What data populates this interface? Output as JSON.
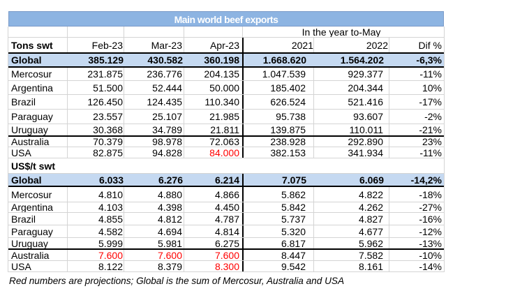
{
  "chart_data": {
    "type": "table",
    "title": "Main world beef exports",
    "span_header": "In the year to-May",
    "header": [
      "Tons swt",
      "Feb-23",
      "Mar-23",
      "Apr-23",
      "2021",
      "2022",
      "Dif %"
    ],
    "usd_section_label": "US$/t swt",
    "tons_rows": [
      [
        "Global",
        "385.129",
        "430.582",
        "360.198",
        "1.668.620",
        "1.564.202",
        "-6,3%"
      ],
      [
        "Mercosur",
        "231.875",
        "236.776",
        "204.135",
        "1.047.539",
        "929.377",
        "-11%"
      ],
      [
        "Argentina",
        "51.500",
        "52.444",
        "50.000",
        "185.402",
        "204.344",
        "10%"
      ],
      [
        "Brazil",
        "126.450",
        "124.435",
        "110.340",
        "626.524",
        "521.416",
        "-17%"
      ],
      [
        "Paraguay",
        "23.557",
        "25.107",
        "21.985",
        "95.738",
        "93.607",
        "-2%"
      ],
      [
        "Uruguay",
        "30.368",
        "34.789",
        "21.811",
        "139.875",
        "110.011",
        "-21%"
      ],
      [
        "Australia",
        "70.379",
        "98.978",
        "72.063",
        "238.928",
        "292.890",
        "23%"
      ],
      [
        "USA",
        "82.875",
        "94.828",
        "84.000",
        "382.153",
        "341.934",
        "-11%"
      ]
    ],
    "usd_rows": [
      [
        "Global",
        "6.033",
        "6.276",
        "6.214",
        "7.075",
        "6.069",
        "-14,2%"
      ],
      [
        "Mercosur",
        "4.810",
        "4.880",
        "4.866",
        "5.862",
        "4.822",
        "-18%"
      ],
      [
        "Argentina",
        "4.103",
        "4.398",
        "4.450",
        "5.842",
        "4.262",
        "-27%"
      ],
      [
        "Brazil",
        "4.855",
        "4.812",
        "4.787",
        "5.737",
        "4.827",
        "-16%"
      ],
      [
        "Paraguay",
        "4.582",
        "4.694",
        "4.814",
        "5.320",
        "4.677",
        "-12%"
      ],
      [
        "Uruguay",
        "5.999",
        "5.981",
        "6.275",
        "6.817",
        "5.962",
        "-13%"
      ],
      [
        "Australia",
        "7.600",
        "7.600",
        "7.600",
        "8.447",
        "7.582",
        "-10%"
      ],
      [
        "USA",
        "8.122",
        "8.379",
        "8.300",
        "9.542",
        "8.161",
        "-14%"
      ]
    ],
    "projected_red_cells": [
      "tons-7-3",
      "usd-6-1",
      "usd-6-2",
      "usd-6-3",
      "usd-7-3"
    ],
    "footnote": "Red numbers are projections; Global is the sum of Mercosur, Australia and USA"
  },
  "colors": {
    "title_bg": "#8DB4E2",
    "title_edge": "#7A9BC9",
    "highlight_bg": "#C5D9F1",
    "projection": "#FF0000",
    "gridline": "#D4D4D4",
    "border": "#000000"
  }
}
